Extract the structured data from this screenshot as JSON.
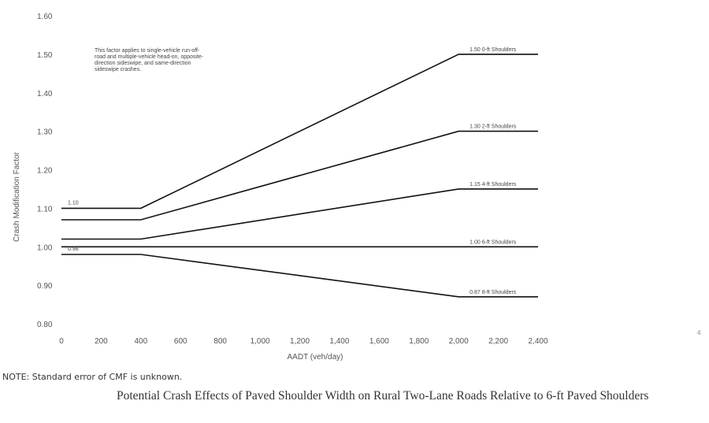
{
  "chart_data": {
    "type": "line",
    "xlabel": "AADT (veh/day)",
    "ylabel": "Crash Modification Factor",
    "xlim": [
      0,
      2400
    ],
    "ylim": [
      0.8,
      1.6
    ],
    "x_ticks": [
      "0",
      "200",
      "400",
      "600",
      "800",
      "1,000",
      "1,200",
      "1,400",
      "1,600",
      "1,800",
      "2,000",
      "2,200",
      "2,400"
    ],
    "y_ticks": [
      "0.80",
      "0.90",
      "1.00",
      "1.10",
      "1.20",
      "1.30",
      "1.40",
      "1.50",
      "1.60"
    ],
    "grid": false,
    "series": [
      {
        "name": "0-ft Shoulders",
        "label": "1.50   0-ft Shoulders",
        "x": [
          0,
          400,
          2000,
          2400
        ],
        "y": [
          1.1,
          1.1,
          1.5,
          1.5
        ]
      },
      {
        "name": "2-ft Shoulders",
        "label": "1.30   2-ft Shoulders",
        "x": [
          0,
          400,
          2000,
          2400
        ],
        "y": [
          1.07,
          1.07,
          1.3,
          1.3
        ]
      },
      {
        "name": "4-ft Shoulders",
        "label": "1.15   4-ft Shoulders",
        "x": [
          0,
          400,
          2000,
          2400
        ],
        "y": [
          1.02,
          1.02,
          1.15,
          1.15
        ]
      },
      {
        "name": "6-ft Shoulders",
        "label": "1.00   6-ft Shoulders",
        "x": [
          0,
          400,
          2000,
          2400
        ],
        "y": [
          1.0,
          1.0,
          1.0,
          1.0
        ]
      },
      {
        "name": "8-ft Shoulders",
        "label": "0.87   8-ft Shoulders",
        "x": [
          0,
          400,
          2000,
          2400
        ],
        "y": [
          0.98,
          0.98,
          0.87,
          0.87
        ]
      }
    ],
    "start_labels": [
      {
        "text": "1.10",
        "y": 1.1
      },
      {
        "text": "0.98",
        "y": 0.98
      }
    ],
    "annotation": [
      "This factor applies to single-vehicle run-off-",
      "road and multiple-vehicle head-on, opposite-",
      "direction sideswipe, and same-direction",
      "sideswipe crashes."
    ]
  },
  "note": "NOTE: Standard error of CMF is unknown.",
  "caption": "Potential Crash Effects of Paved Shoulder Width on Rural Two-Lane Roads Relative to 6-ft Paved Shoulders",
  "corner_mark": "4"
}
